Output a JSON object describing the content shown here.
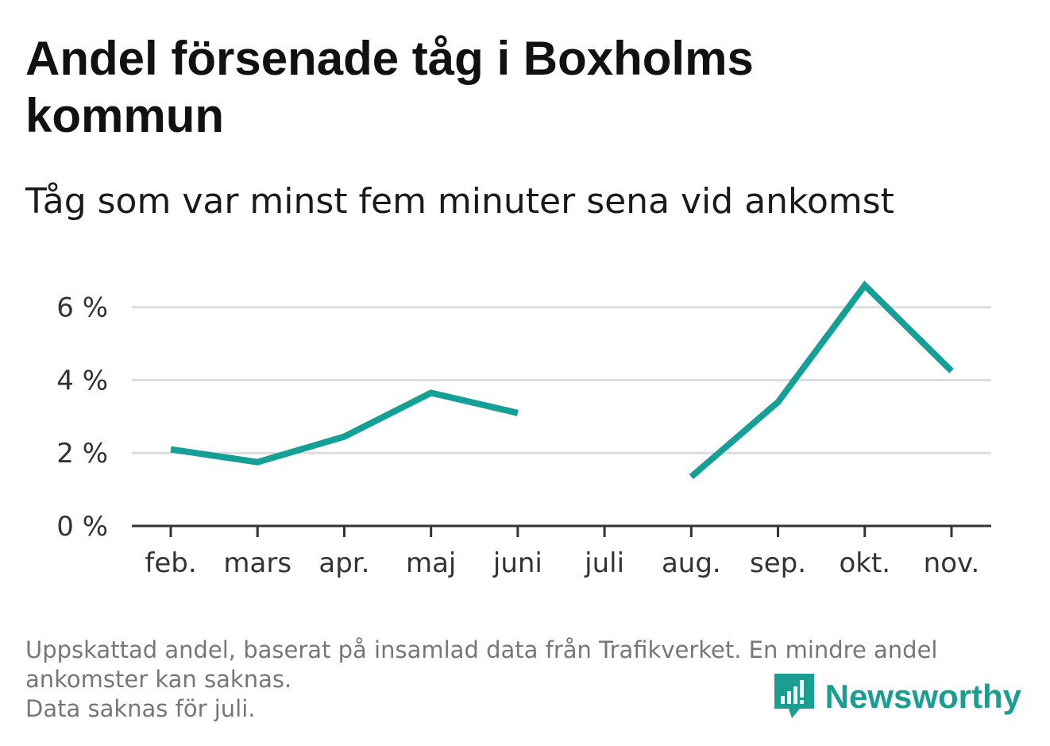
{
  "title": "Andel försenade tåg i Boxholms kommun",
  "subtitle": "Tåg som var minst fem minuter sena vid ankomst",
  "footer": {
    "line1": "Uppskattad andel, baserat på insamlad data från Trafikverket. En mindre andel",
    "line2": "ankomster kan saknas.",
    "line3": "Data saknas för juli."
  },
  "brand": {
    "name": "Newsworthy",
    "icon": "newsworthy-logo-icon",
    "color": "#1a9e92"
  },
  "chart_data": {
    "type": "line",
    "title": "Andel försenade tåg i Boxholms kommun",
    "subtitle": "Tåg som var minst fem minuter sena vid ankomst",
    "categories": [
      "feb.",
      "mars",
      "apr.",
      "maj",
      "juni",
      "juli",
      "aug.",
      "sep.",
      "okt.",
      "nov."
    ],
    "series": [
      {
        "values": [
          2.1,
          1.75,
          2.45,
          3.65,
          3.1,
          null,
          1.35,
          3.4,
          6.6,
          4.25
        ],
        "color": "#14a096"
      }
    ],
    "y_ticks": [
      0,
      2,
      4,
      6
    ],
    "y_tick_labels": [
      "0 %",
      "2 %",
      "4 %",
      "6 %"
    ],
    "ylim": [
      0,
      6.8
    ],
    "grid": true,
    "legend": "none"
  }
}
